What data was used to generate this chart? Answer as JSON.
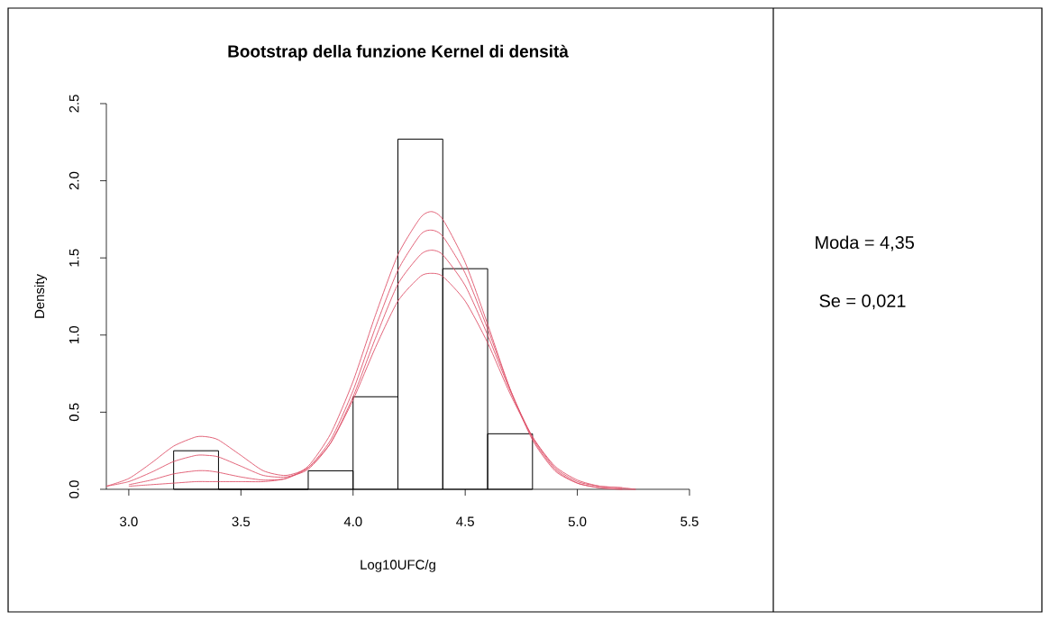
{
  "chart_data": {
    "type": "histogram",
    "title": "Bootstrap della funzione Kernel di densità",
    "xlabel": "Log10UFC/g",
    "ylabel": "Density",
    "bins": [
      3.2,
      3.4,
      3.6,
      3.8,
      4.0,
      4.2,
      4.4,
      4.6,
      4.8
    ],
    "values": [
      0.25,
      0,
      0,
      0.12,
      0.6,
      2.27,
      1.43,
      0.36
    ],
    "color": "#000000",
    "series": [
      {
        "type": "line",
        "color": "#df536b",
        "x": [
          2.9,
          3.0,
          3.1,
          3.2,
          3.3,
          3.35,
          3.4,
          3.5,
          3.6,
          3.7,
          3.8,
          3.9,
          4.0,
          4.1,
          4.2,
          4.3,
          4.35,
          4.4,
          4.5,
          4.6,
          4.7,
          4.8,
          4.9,
          5.0,
          5.1,
          5.2,
          5.26
        ],
        "values": [
          0.02,
          0.07,
          0.17,
          0.28,
          0.34,
          0.34,
          0.32,
          0.22,
          0.12,
          0.09,
          0.14,
          0.3,
          0.58,
          0.92,
          1.22,
          1.38,
          1.4,
          1.38,
          1.22,
          0.95,
          0.62,
          0.34,
          0.15,
          0.06,
          0.02,
          0.01,
          0
        ]
      },
      {
        "type": "line",
        "color": "#df536b",
        "x": [
          2.9,
          3.0,
          3.1,
          3.2,
          3.3,
          3.35,
          3.4,
          3.5,
          3.6,
          3.7,
          3.8,
          3.9,
          4.0,
          4.1,
          4.2,
          4.3,
          4.35,
          4.4,
          4.5,
          4.6,
          4.7,
          4.8,
          4.9,
          5.0,
          5.1,
          5.2
        ],
        "values": [
          0.02,
          0.05,
          0.11,
          0.18,
          0.22,
          0.22,
          0.21,
          0.15,
          0.09,
          0.08,
          0.13,
          0.3,
          0.6,
          0.98,
          1.33,
          1.52,
          1.55,
          1.52,
          1.32,
          1.0,
          0.64,
          0.34,
          0.14,
          0.05,
          0.02,
          0.01
        ]
      },
      {
        "type": "line",
        "color": "#df536b",
        "x": [
          3.0,
          3.1,
          3.2,
          3.3,
          3.35,
          3.4,
          3.5,
          3.6,
          3.7,
          3.8,
          3.9,
          4.0,
          4.1,
          4.2,
          4.3,
          4.35,
          4.4,
          4.5,
          4.6,
          4.7,
          4.8,
          4.9,
          5.0,
          5.1,
          5.2,
          5.26
        ],
        "values": [
          0.03,
          0.06,
          0.1,
          0.12,
          0.12,
          0.11,
          0.08,
          0.06,
          0.07,
          0.14,
          0.32,
          0.64,
          1.05,
          1.42,
          1.65,
          1.68,
          1.64,
          1.4,
          1.04,
          0.65,
          0.33,
          0.13,
          0.04,
          0.01,
          0,
          0
        ]
      },
      {
        "type": "line",
        "color": "#df536b",
        "x": [
          3.0,
          3.1,
          3.2,
          3.3,
          3.35,
          3.4,
          3.5,
          3.6,
          3.7,
          3.8,
          3.9,
          4.0,
          4.1,
          4.2,
          4.3,
          4.35,
          4.4,
          4.5,
          4.6,
          4.7,
          4.8,
          4.9,
          5.0,
          5.1,
          5.2
        ],
        "values": [
          0.02,
          0.03,
          0.04,
          0.05,
          0.05,
          0.05,
          0.05,
          0.05,
          0.07,
          0.15,
          0.36,
          0.7,
          1.13,
          1.52,
          1.76,
          1.8,
          1.75,
          1.47,
          1.07,
          0.65,
          0.32,
          0.12,
          0.04,
          0.01,
          0
        ]
      }
    ],
    "xlim": [
      2.9,
      5.5
    ],
    "ylim": [
      0,
      2.5
    ],
    "xticks": [
      {
        "value": 3.0,
        "label": "3.0"
      },
      {
        "value": 3.5,
        "label": "3.5"
      },
      {
        "value": 4.0,
        "label": "4.0"
      },
      {
        "value": 4.5,
        "label": "4.5"
      },
      {
        "value": 5.0,
        "label": "5.0"
      },
      {
        "value": 5.5,
        "label": "5.5"
      }
    ],
    "yticks": [
      {
        "value": 0,
        "label": "0.0"
      },
      {
        "value": 0.5,
        "label": "0.5"
      },
      {
        "value": 1.0,
        "label": "1.0"
      },
      {
        "value": 1.5,
        "label": "1.5"
      },
      {
        "value": 2.0,
        "label": "2.0"
      },
      {
        "value": 2.5,
        "label": "2.5"
      }
    ],
    "annotations": [
      "Moda = 4,35",
      "Se = 0,021"
    ]
  }
}
